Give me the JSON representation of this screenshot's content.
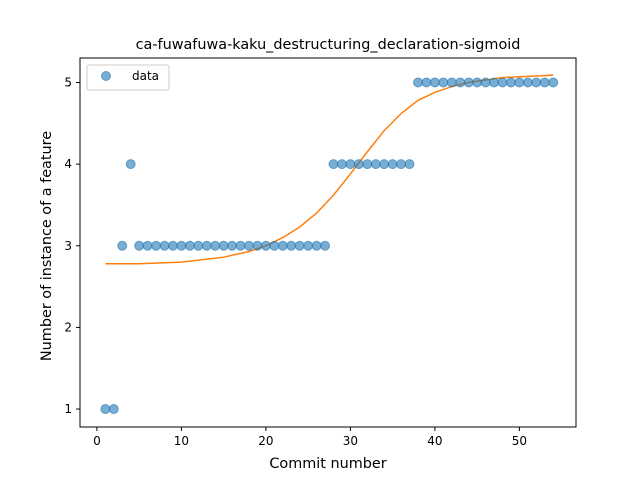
{
  "chart_data": {
    "type": "scatter",
    "title": "ca-fuwafuwa-kaku_destructuring_declaration-sigmoid",
    "xlabel": "Commit number",
    "ylabel": "Number of instance of a feature",
    "xlim": [
      -2,
      56.7
    ],
    "ylim": [
      0.78,
      5.3
    ],
    "xticks": [
      0,
      10,
      20,
      30,
      40,
      50
    ],
    "yticks": [
      1,
      2,
      3,
      4,
      5
    ],
    "grid": false,
    "legend": {
      "placement": "top-left",
      "entries": [
        "data"
      ]
    },
    "colors": {
      "data": "#1f77b4",
      "fit": "#ff7f0e"
    },
    "series": [
      {
        "name": "data",
        "kind": "scatter",
        "x": [
          1,
          2,
          3,
          4,
          5,
          6,
          7,
          8,
          9,
          10,
          11,
          12,
          13,
          14,
          15,
          16,
          17,
          18,
          19,
          20,
          21,
          22,
          23,
          24,
          25,
          26,
          27,
          28,
          29,
          30,
          31,
          32,
          33,
          34,
          35,
          36,
          37,
          38,
          39,
          40,
          41,
          42,
          43,
          44,
          45,
          46,
          47,
          48,
          49,
          50,
          51,
          52,
          53,
          54
        ],
        "y": [
          1,
          1,
          3,
          4,
          3,
          3,
          3,
          3,
          3,
          3,
          3,
          3,
          3,
          3,
          3,
          3,
          3,
          3,
          3,
          3,
          3,
          3,
          3,
          3,
          3,
          3,
          3,
          4,
          4,
          4,
          4,
          4,
          4,
          4,
          4,
          4,
          4,
          5,
          5,
          5,
          5,
          5,
          5,
          5,
          5,
          5,
          5,
          5,
          5,
          5,
          5,
          5,
          5,
          5
        ]
      },
      {
        "kind": "line",
        "x": [
          1,
          5,
          10,
          15,
          18,
          20,
          22,
          24,
          26,
          28,
          30,
          32,
          34,
          36,
          38,
          40,
          42,
          44,
          46,
          48,
          50,
          52,
          54
        ],
        "y": [
          2.78,
          2.78,
          2.8,
          2.86,
          2.93,
          3.0,
          3.1,
          3.23,
          3.4,
          3.62,
          3.88,
          4.15,
          4.41,
          4.62,
          4.78,
          4.88,
          4.95,
          5.0,
          5.03,
          5.06,
          5.07,
          5.08,
          5.09
        ]
      }
    ]
  }
}
